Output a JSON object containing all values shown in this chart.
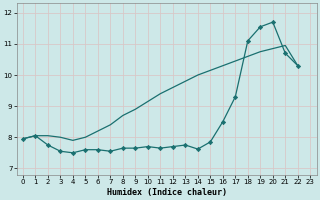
{
  "xlabel": "Humidex (Indice chaleur)",
  "background_color": "#cde8e8",
  "line_color": "#1a7070",
  "grid_color": "#b0d8d8",
  "xlim": [
    -0.5,
    23.5
  ],
  "ylim": [
    6.8,
    12.3
  ],
  "yticks": [
    7,
    8,
    9,
    10,
    11,
    12
  ],
  "xticks": [
    0,
    1,
    2,
    3,
    4,
    5,
    6,
    7,
    8,
    9,
    10,
    11,
    12,
    13,
    14,
    15,
    16,
    17,
    18,
    19,
    20,
    21,
    22,
    23
  ],
  "x_smooth": [
    0,
    1,
    2,
    3,
    4,
    5,
    6,
    7,
    8,
    9,
    10,
    11,
    12,
    13,
    14,
    15,
    16,
    17,
    18,
    19,
    20,
    21,
    22
  ],
  "y_smooth": [
    7.95,
    8.05,
    8.05,
    8.0,
    7.9,
    8.0,
    8.2,
    8.4,
    8.7,
    8.9,
    9.15,
    9.4,
    9.6,
    9.8,
    10.0,
    10.15,
    10.3,
    10.45,
    10.6,
    10.75,
    10.85,
    10.95,
    10.3
  ],
  "x_jagged": [
    0,
    1,
    2,
    3,
    4,
    5,
    6,
    7,
    8,
    9,
    10,
    11,
    12,
    13,
    14,
    15,
    16,
    17,
    18,
    19,
    20,
    21,
    22
  ],
  "y_jagged": [
    7.95,
    8.05,
    7.75,
    7.55,
    7.5,
    7.6,
    7.6,
    7.55,
    7.65,
    7.65,
    7.7,
    7.65,
    7.7,
    7.75,
    7.62,
    7.85,
    8.5,
    9.3,
    11.1,
    11.55,
    11.7,
    10.7,
    10.3
  ]
}
